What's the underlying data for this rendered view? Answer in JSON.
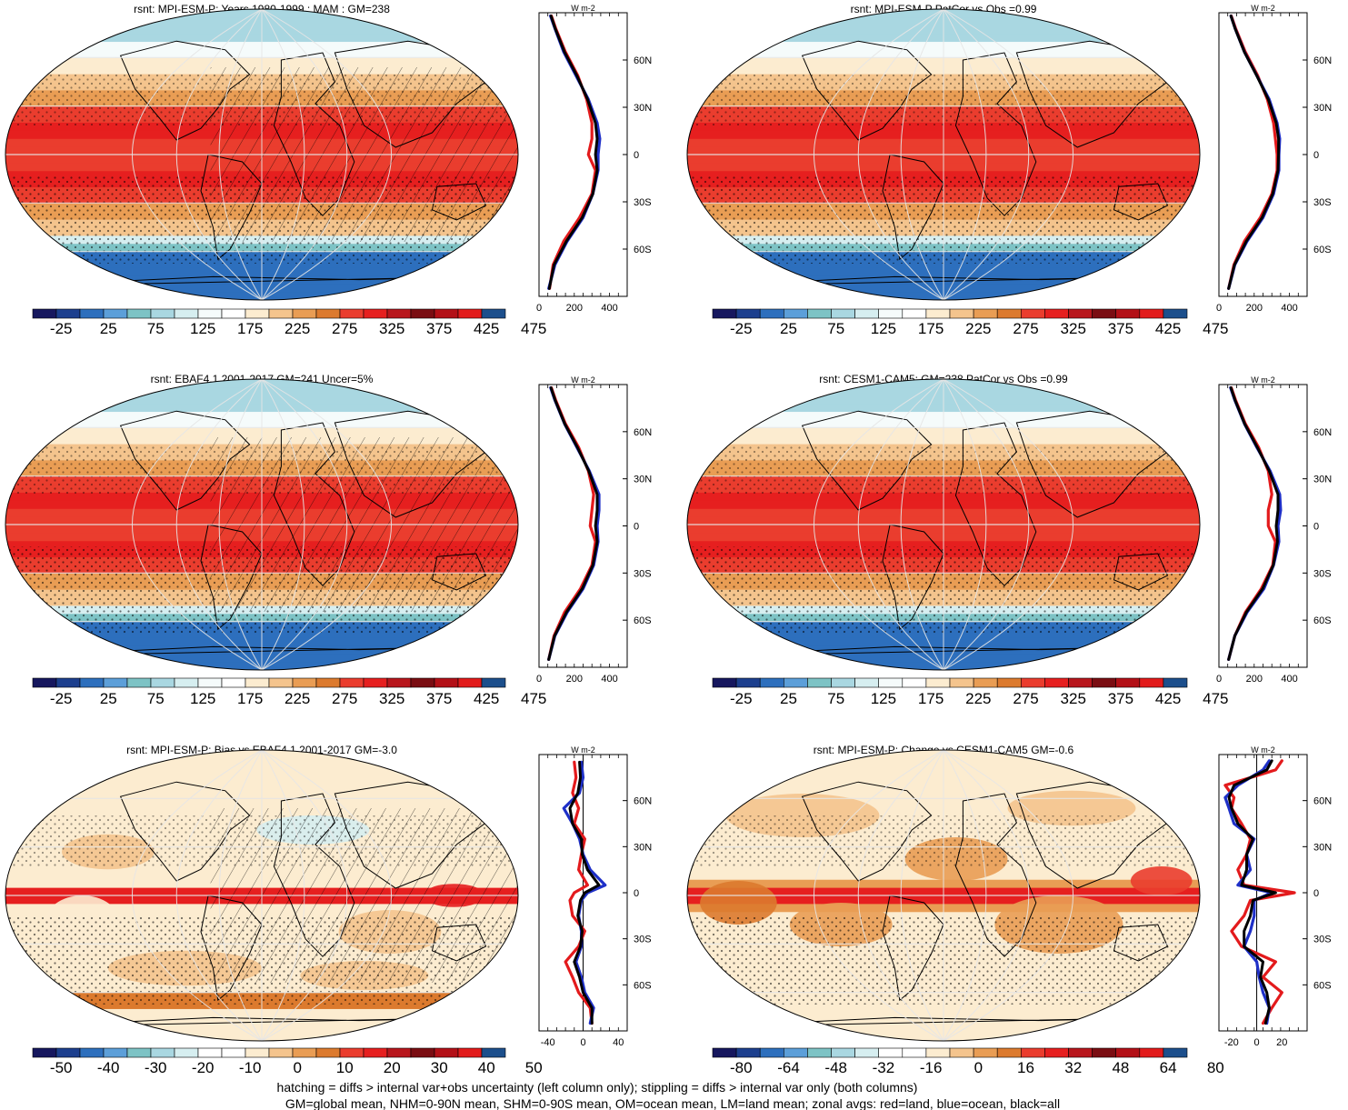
{
  "footer": {
    "line1": "hatching = diffs > internal var+obs uncertainty (left column only); stippling = diffs > internal var only (both columns)",
    "line2": "GM=global mean, NHM=0-90N mean, SHM=0-90S mean, OM=ocean mean, LM=land mean; zonal avgs: red=land, blue=ocean, black=all"
  },
  "colors": {
    "abs_scale": [
      "#16175e",
      "#1c3f8e",
      "#2d6fbd",
      "#5c9fd9",
      "#7dc3c5",
      "#a9d7e1",
      "#d6eef0",
      "#f5fbfb",
      "#ffffff",
      "#fcecd0",
      "#f4c48d",
      "#e99d54",
      "#dc7a2e",
      "#ea3d2e",
      "#e61f1f",
      "#b8161c",
      "#7a0d12",
      "#b31017",
      "#e21b1b",
      "#1c4f8c"
    ],
    "diff_scale": [
      "#16175e",
      "#1c3f8e",
      "#2d6fbd",
      "#5c9fd9",
      "#7dc3c5",
      "#a9d7e1",
      "#d6eef0",
      "#ffffff",
      "#ffffff",
      "#fcecd0",
      "#f4c48d",
      "#e99d54",
      "#dc7a2e",
      "#ea3d2e",
      "#e61f1f",
      "#b8161c",
      "#7a0d12",
      "#b31017",
      "#e21b1b",
      "#1c4f8c"
    ],
    "land": "#e31a1c",
    "ocean": "#1f30c8",
    "all": "#000000"
  },
  "chart_data": [
    {
      "type": "heatmap",
      "title": "rsnt: MPI-ESM-P: Years 1980-1999 : MAM : GM=238",
      "field": "abs",
      "colorbar_labels": [
        "-25",
        "25",
        "75",
        "125",
        "175",
        "225",
        "275",
        "325",
        "375",
        "425",
        "475"
      ],
      "zonal_profile": {
        "unit": "W m-2",
        "xlim": [
          0,
          500
        ],
        "x_ticks": [
          "0",
          "200",
          "400"
        ],
        "lat_ticks": [
          "60N",
          "30N",
          "0",
          "30S",
          "60S"
        ],
        "lat": [
          -85,
          -70,
          -55,
          -40,
          -25,
          -10,
          0,
          10,
          20,
          35,
          50,
          65,
          80,
          88
        ],
        "land": [
          60,
          80,
          140,
          230,
          300,
          320,
          280,
          300,
          300,
          270,
          220,
          150,
          95,
          70
        ],
        "ocean": [
          55,
          90,
          160,
          250,
          305,
          335,
          335,
          345,
          330,
          280,
          210,
          140,
          90,
          65
        ],
        "all": [
          58,
          85,
          155,
          245,
          305,
          330,
          320,
          330,
          320,
          275,
          215,
          145,
          92,
          68
        ]
      }
    },
    {
      "type": "heatmap",
      "title": "rsnt: MPI-ESM-P PatCor vs Obs =0.99",
      "field": "abs",
      "colorbar_labels": [
        "-25",
        "25",
        "75",
        "125",
        "175",
        "225",
        "275",
        "325",
        "375",
        "425",
        "475"
      ],
      "zonal_profile": {
        "unit": "W m-2",
        "xlim": [
          0,
          500
        ],
        "x_ticks": [
          "0",
          "200",
          "400"
        ],
        "lat_ticks": [
          "60N",
          "30N",
          "0",
          "30S",
          "60S"
        ],
        "lat": [
          -85,
          -70,
          -55,
          -40,
          -25,
          -10,
          0,
          10,
          20,
          35,
          50,
          65,
          80,
          88
        ],
        "land": [
          55,
          85,
          145,
          235,
          300,
          330,
          330,
          320,
          310,
          275,
          220,
          150,
          95,
          70
        ],
        "ocean": [
          55,
          90,
          160,
          250,
          310,
          340,
          340,
          345,
          330,
          285,
          215,
          145,
          92,
          68
        ],
        "all": [
          55,
          88,
          155,
          245,
          305,
          335,
          338,
          338,
          325,
          280,
          215,
          145,
          92,
          68
        ]
      }
    },
    {
      "type": "heatmap",
      "title": "rsnt: EBAF4.1 2001-2017 GM=241 Uncer=5%",
      "field": "abs",
      "colorbar_labels": [
        "-25",
        "25",
        "75",
        "125",
        "175",
        "225",
        "275",
        "325",
        "375",
        "425",
        "475"
      ],
      "zonal_profile": {
        "unit": "W m-2",
        "xlim": [
          0,
          500
        ],
        "x_ticks": [
          "0",
          "200",
          "400"
        ],
        "lat_ticks": [
          "60N",
          "30N",
          "0",
          "30S",
          "60S"
        ],
        "lat": [
          -85,
          -70,
          -55,
          -40,
          -25,
          -10,
          0,
          10,
          20,
          35,
          50,
          65,
          80,
          88
        ],
        "land": [
          55,
          85,
          145,
          235,
          300,
          320,
          290,
          300,
          310,
          280,
          225,
          150,
          95,
          70
        ],
        "ocean": [
          55,
          90,
          160,
          250,
          310,
          335,
          330,
          340,
          340,
          285,
          215,
          145,
          90,
          66
        ],
        "all": [
          55,
          88,
          155,
          245,
          305,
          330,
          320,
          330,
          330,
          282,
          218,
          146,
          92,
          68
        ]
      }
    },
    {
      "type": "heatmap",
      "title": "rsnt: CESM1-CAM5: GM=238 PatCor vs Obs =0.99",
      "field": "abs",
      "colorbar_labels": [
        "-25",
        "25",
        "75",
        "125",
        "175",
        "225",
        "275",
        "325",
        "375",
        "425",
        "475"
      ],
      "zonal_profile": {
        "unit": "W m-2",
        "xlim": [
          0,
          500
        ],
        "x_ticks": [
          "0",
          "200",
          "400"
        ],
        "lat_ticks": [
          "60N",
          "30N",
          "0",
          "30S",
          "60S"
        ],
        "lat": [
          -85,
          -70,
          -55,
          -40,
          -25,
          -10,
          0,
          10,
          20,
          35,
          50,
          65,
          80,
          88
        ],
        "land": [
          55,
          90,
          150,
          240,
          305,
          320,
          280,
          280,
          300,
          280,
          225,
          150,
          95,
          70
        ],
        "ocean": [
          55,
          90,
          160,
          255,
          310,
          340,
          335,
          350,
          345,
          290,
          215,
          145,
          90,
          66
        ],
        "all": [
          55,
          90,
          155,
          248,
          308,
          332,
          325,
          335,
          335,
          285,
          218,
          146,
          92,
          68
        ]
      }
    },
    {
      "type": "heatmap",
      "title": "rsnt: MPI-ESM-P: Bias vs EBAF4.1 2001-2017 GM=-3.0",
      "field": "diff",
      "colorbar_labels": [
        "-50",
        "-40",
        "-30",
        "-20",
        "-10",
        "0",
        "10",
        "20",
        "30",
        "40",
        "50"
      ],
      "zonal_profile": {
        "unit": "W m-2",
        "xlim": [
          -50,
          50
        ],
        "x_ticks": [
          "-40",
          "0",
          "40"
        ],
        "lat_ticks": [
          "60N",
          "30N",
          "0",
          "30S",
          "60S"
        ],
        "lat": [
          -85,
          -75,
          -65,
          -55,
          -45,
          -35,
          -25,
          -15,
          -5,
          0,
          5,
          15,
          25,
          35,
          45,
          55,
          65,
          75,
          85
        ],
        "land": [
          10,
          8,
          -5,
          -12,
          -20,
          -5,
          2,
          -12,
          -15,
          -10,
          5,
          -5,
          -2,
          2,
          -10,
          -5,
          -12,
          -8,
          -10
        ],
        "ocean": [
          8,
          12,
          2,
          -2,
          -8,
          -2,
          -2,
          -5,
          -2,
          5,
          25,
          8,
          0,
          -4,
          -12,
          -22,
          -4,
          0,
          -2
        ],
        "all": [
          10,
          10,
          0,
          -4,
          -10,
          -3,
          -1,
          -6,
          -3,
          2,
          18,
          5,
          -1,
          -2,
          -12,
          -15,
          -6,
          -3,
          -4
        ]
      }
    },
    {
      "type": "heatmap",
      "title": "rsnt: MPI-ESM-P: Change vs CESM1-CAM5 GM=-0.6",
      "field": "diff",
      "colorbar_labels": [
        "-80",
        "-64",
        "-48",
        "-32",
        "-16",
        "0",
        "16",
        "32",
        "48",
        "64",
        "80"
      ],
      "zonal_profile": {
        "unit": "W m-2",
        "xlim": [
          -30,
          40
        ],
        "x_ticks": [
          "-20",
          "0",
          "20"
        ],
        "lat_ticks": [
          "60N",
          "30N",
          "0",
          "30S",
          "60S"
        ],
        "lat": [
          -85,
          -75,
          -65,
          -55,
          -45,
          -35,
          -25,
          -15,
          -5,
          0,
          5,
          15,
          25,
          35,
          45,
          55,
          62,
          70,
          80,
          86
        ],
        "land": [
          5,
          12,
          20,
          5,
          15,
          -12,
          -20,
          -10,
          -5,
          30,
          -10,
          -15,
          -8,
          -5,
          -12,
          -20,
          -18,
          -25,
          15,
          20
        ],
        "ocean": [
          8,
          10,
          5,
          2,
          0,
          -10,
          -5,
          -2,
          -2,
          12,
          -15,
          -5,
          -8,
          -2,
          -18,
          -22,
          -25,
          -15,
          5,
          10
        ],
        "all": [
          7,
          10,
          8,
          3,
          5,
          -10,
          -10,
          -5,
          -3,
          15,
          -12,
          -8,
          -8,
          -3,
          -15,
          -20,
          -22,
          -18,
          8,
          12
        ]
      }
    }
  ]
}
